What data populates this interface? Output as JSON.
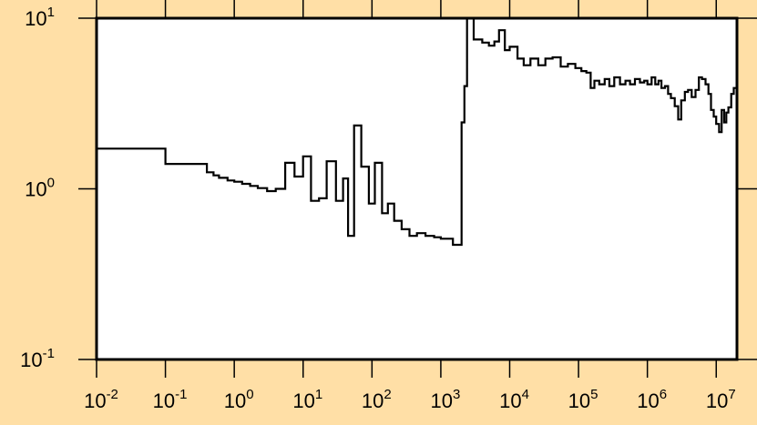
{
  "chart_data": {
    "type": "line",
    "title": "",
    "xlabel": "",
    "ylabel": "",
    "x_scale": "log",
    "y_scale": "log",
    "xlim": [
      0.01,
      20000000
    ],
    "ylim": [
      0.1,
      10
    ],
    "grid": false,
    "line_color": "#000000",
    "plot_background": "#ffffff",
    "page_background": "#ffdfa6",
    "x_ticks": [
      {
        "value": 0.01,
        "base": "10",
        "exp": "-2"
      },
      {
        "value": 0.1,
        "base": "10",
        "exp": "-1"
      },
      {
        "value": 1,
        "base": "10",
        "exp": "0"
      },
      {
        "value": 10,
        "base": "10",
        "exp": "1"
      },
      {
        "value": 100,
        "base": "10",
        "exp": "2"
      },
      {
        "value": 1000,
        "base": "10",
        "exp": "3"
      },
      {
        "value": 10000,
        "base": "10",
        "exp": "4"
      },
      {
        "value": 100000,
        "base": "10",
        "exp": "5"
      },
      {
        "value": 1000000,
        "base": "10",
        "exp": "6"
      },
      {
        "value": 10000000,
        "base": "10",
        "exp": "7"
      }
    ],
    "y_ticks": [
      {
        "value": 0.1,
        "base": "10",
        "exp": "-1"
      },
      {
        "value": 1,
        "base": "10",
        "exp": "0"
      },
      {
        "value": 10,
        "base": "10",
        "exp": "1"
      }
    ],
    "series": [
      {
        "style": "step",
        "points": [
          [
            0.01,
            1.72
          ],
          [
            0.1,
            1.4
          ],
          [
            0.4,
            1.25
          ],
          [
            0.5,
            1.2
          ],
          [
            0.6,
            1.16
          ],
          [
            0.8,
            1.12
          ],
          [
            1.0,
            1.1
          ],
          [
            1.3,
            1.07
          ],
          [
            1.7,
            1.04
          ],
          [
            2.2,
            1.01
          ],
          [
            3.0,
            0.97
          ],
          [
            4.0,
            1.0
          ],
          [
            5.5,
            1.42
          ],
          [
            7.5,
            1.18
          ],
          [
            10,
            1.55
          ],
          [
            13,
            0.85
          ],
          [
            17,
            0.88
          ],
          [
            22,
            1.45
          ],
          [
            30,
            0.85
          ],
          [
            38,
            1.15
          ],
          [
            45,
            0.53
          ],
          [
            55,
            2.35
          ],
          [
            70,
            1.35
          ],
          [
            90,
            0.82
          ],
          [
            110,
            1.42
          ],
          [
            140,
            0.72
          ],
          [
            170,
            0.82
          ],
          [
            210,
            0.65
          ],
          [
            270,
            0.58
          ],
          [
            350,
            0.53
          ],
          [
            450,
            0.55
          ],
          [
            600,
            0.53
          ],
          [
            800,
            0.52
          ],
          [
            1000,
            0.51
          ],
          [
            1500,
            0.47
          ],
          [
            2000,
            2.45
          ],
          [
            2200,
            4.0
          ],
          [
            2400,
            10.0
          ],
          [
            3000,
            7.5
          ],
          [
            4000,
            7.2
          ],
          [
            5000,
            6.9
          ],
          [
            6000,
            7.3
          ],
          [
            7000,
            8.5
          ],
          [
            8500,
            6.5
          ],
          [
            10000,
            6.8
          ],
          [
            13000,
            5.8
          ],
          [
            16000,
            5.3
          ],
          [
            20000,
            5.8
          ],
          [
            26000,
            5.3
          ],
          [
            33000,
            5.8
          ],
          [
            42000,
            5.9
          ],
          [
            55000,
            5.2
          ],
          [
            70000,
            5.4
          ],
          [
            90000,
            5.1
          ],
          [
            110000,
            4.9
          ],
          [
            130000,
            4.8
          ],
          [
            150000,
            3.9
          ],
          [
            170000,
            4.3
          ],
          [
            200000,
            4.1
          ],
          [
            240000,
            4.4
          ],
          [
            280000,
            4.0
          ],
          [
            330000,
            4.5
          ],
          [
            400000,
            4.1
          ],
          [
            480000,
            4.3
          ],
          [
            560000,
            4.1
          ],
          [
            660000,
            4.4
          ],
          [
            780000,
            4.2
          ],
          [
            900000,
            4.3
          ],
          [
            1000000,
            4.1
          ],
          [
            1150000,
            4.5
          ],
          [
            1300000,
            4.1
          ],
          [
            1450000,
            4.3
          ],
          [
            1600000,
            3.9
          ],
          [
            1800000,
            4.0
          ],
          [
            2000000,
            3.6
          ],
          [
            2200000,
            3.4
          ],
          [
            2500000,
            3.05
          ],
          [
            2800000,
            2.55
          ],
          [
            3100000,
            3.3
          ],
          [
            3500000,
            3.7
          ],
          [
            3900000,
            3.8
          ],
          [
            4400000,
            3.45
          ],
          [
            5000000,
            3.8
          ],
          [
            5600000,
            4.5
          ],
          [
            6200000,
            4.4
          ],
          [
            7000000,
            4.1
          ],
          [
            7700000,
            3.6
          ],
          [
            8400000,
            2.9
          ],
          [
            9200000,
            2.65
          ],
          [
            10000000,
            2.4
          ],
          [
            11000000,
            2.15
          ],
          [
            12000000,
            2.9
          ],
          [
            13000000,
            2.45
          ],
          [
            14000000,
            2.8
          ],
          [
            15000000,
            3.0
          ],
          [
            16500000,
            3.6
          ],
          [
            18000000,
            3.9
          ],
          [
            20000000,
            3.9
          ]
        ]
      }
    ]
  }
}
